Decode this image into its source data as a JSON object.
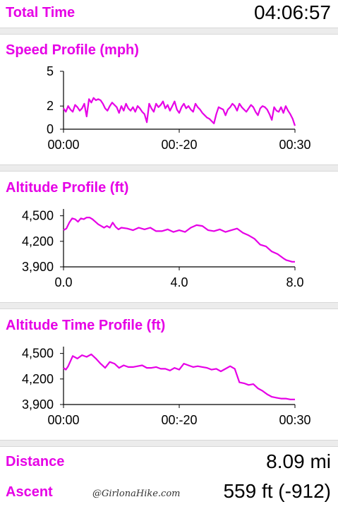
{
  "header": {
    "label": "Total Time",
    "value": "04:06:57"
  },
  "footer": {
    "distance": {
      "label": "Distance",
      "value": "8.09 mi"
    },
    "ascent": {
      "label": "Ascent",
      "value": "559 ft (-912)"
    },
    "watermark": "@GirlonaHike.com"
  },
  "colors": {
    "accent": "#e600e6",
    "separator": "#ececec",
    "text": "#000000"
  },
  "chart_data": [
    {
      "type": "line",
      "title": "Speed Profile (mph)",
      "ylim": [
        0,
        5
      ],
      "yticks": [
        "0",
        "2",
        "5"
      ],
      "ytick_values": [
        0,
        2,
        5
      ],
      "xlim": [
        0,
        1
      ],
      "xticks": [
        "00:00",
        "00:-20",
        "00:30"
      ],
      "xtick_values": [
        0,
        0.5,
        1
      ],
      "series": [
        {
          "x": [
            0,
            0.01,
            0.02,
            0.03,
            0.04,
            0.05,
            0.06,
            0.07,
            0.08,
            0.09,
            0.1,
            0.11,
            0.12,
            0.13,
            0.14,
            0.15,
            0.16,
            0.17,
            0.18,
            0.19,
            0.2,
            0.21,
            0.22,
            0.23,
            0.24,
            0.25,
            0.26,
            0.27,
            0.28,
            0.29,
            0.3,
            0.31,
            0.32,
            0.33,
            0.34,
            0.35,
            0.36,
            0.37,
            0.38,
            0.39,
            0.4,
            0.41,
            0.42,
            0.43,
            0.44,
            0.45,
            0.46,
            0.47,
            0.48,
            0.49,
            0.5,
            0.51,
            0.52,
            0.53,
            0.54,
            0.55,
            0.56,
            0.57,
            0.58,
            0.59,
            0.6,
            0.61,
            0.62,
            0.63,
            0.64,
            0.65,
            0.66,
            0.67,
            0.68,
            0.69,
            0.7,
            0.71,
            0.72,
            0.73,
            0.74,
            0.75,
            0.76,
            0.77,
            0.78,
            0.79,
            0.8,
            0.81,
            0.82,
            0.83,
            0.84,
            0.85,
            0.86,
            0.87,
            0.88,
            0.89,
            0.9,
            0.91,
            0.92,
            0.93,
            0.94,
            0.95,
            0.96,
            0.97,
            0.98,
            0.99,
            1
          ],
          "y": [
            1.8,
            1.5,
            2.0,
            1.7,
            1.5,
            2.1,
            1.9,
            1.6,
            1.8,
            2.2,
            1.1,
            2.6,
            2.3,
            2.7,
            2.5,
            2.6,
            2.5,
            2.2,
            1.8,
            1.6,
            2.0,
            2.3,
            2.1,
            1.9,
            1.4,
            2.0,
            1.6,
            2.2,
            1.8,
            1.6,
            1.9,
            1.5,
            2.0,
            1.8,
            1.5,
            1.3,
            0.6,
            2.2,
            1.8,
            1.5,
            2.2,
            1.9,
            2.1,
            2.4,
            1.8,
            2.1,
            1.6,
            2.0,
            2.4,
            1.7,
            1.4,
            1.9,
            2.2,
            1.8,
            2.0,
            1.7,
            1.5,
            2.2,
            1.9,
            1.7,
            1.4,
            1.2,
            1.0,
            0.9,
            0.7,
            0.5,
            1.3,
            1.9,
            1.8,
            1.7,
            1.2,
            1.7,
            1.9,
            2.2,
            2.0,
            1.6,
            2.2,
            1.9,
            1.7,
            1.5,
            1.8,
            2.1,
            1.9,
            1.5,
            1.2,
            1.8,
            2.0,
            1.9,
            1.7,
            1.3,
            0.8,
            1.9,
            1.6,
            1.5,
            1.9,
            1.4,
            2.0,
            1.6,
            1.3,
            0.9,
            0.3
          ]
        }
      ]
    },
    {
      "type": "line",
      "title": "Altitude Profile (ft)",
      "ylim": [
        3900,
        4580
      ],
      "yticks": [
        "3,900",
        "4,200",
        "4,500"
      ],
      "ytick_values": [
        3900,
        4200,
        4500
      ],
      "xlim": [
        0,
        8
      ],
      "xticks": [
        "0.0",
        "4.0",
        "8.0"
      ],
      "xtick_values": [
        0,
        4,
        8
      ],
      "series": [
        {
          "x": [
            0,
            0.1,
            0.2,
            0.3,
            0.4,
            0.5,
            0.6,
            0.7,
            0.8,
            0.9,
            1.0,
            1.1,
            1.2,
            1.3,
            1.4,
            1.5,
            1.6,
            1.7,
            1.8,
            1.9,
            2.0,
            2.2,
            2.4,
            2.6,
            2.8,
            3.0,
            3.2,
            3.4,
            3.6,
            3.8,
            4.0,
            4.2,
            4.4,
            4.6,
            4.8,
            5.0,
            5.2,
            5.4,
            5.6,
            5.8,
            6.0,
            6.2,
            6.4,
            6.6,
            6.8,
            7.0,
            7.2,
            7.4,
            7.6,
            7.7,
            7.8,
            7.9,
            8.0
          ],
          "y": [
            4330,
            4350,
            4420,
            4470,
            4460,
            4430,
            4470,
            4460,
            4480,
            4480,
            4460,
            4430,
            4400,
            4380,
            4360,
            4380,
            4360,
            4420,
            4370,
            4340,
            4360,
            4350,
            4330,
            4360,
            4340,
            4360,
            4320,
            4320,
            4340,
            4310,
            4330,
            4310,
            4360,
            4390,
            4380,
            4330,
            4320,
            4340,
            4310,
            4330,
            4350,
            4300,
            4270,
            4230,
            4160,
            4140,
            4080,
            4050,
            4000,
            3980,
            3970,
            3960,
            3960
          ]
        }
      ]
    },
    {
      "type": "line",
      "title": "Altitude Time Profile (ft)",
      "ylim": [
        3900,
        4580
      ],
      "yticks": [
        "3,900",
        "4,200",
        "4,500"
      ],
      "ytick_values": [
        3900,
        4200,
        4500
      ],
      "xlim": [
        0,
        1
      ],
      "xticks": [
        "00:00",
        "00:-20",
        "00:30"
      ],
      "xtick_values": [
        0,
        0.5,
        1
      ],
      "series": [
        {
          "x": [
            0,
            0.01,
            0.02,
            0.04,
            0.06,
            0.08,
            0.1,
            0.12,
            0.14,
            0.16,
            0.18,
            0.2,
            0.22,
            0.24,
            0.26,
            0.28,
            0.3,
            0.32,
            0.34,
            0.36,
            0.38,
            0.4,
            0.42,
            0.44,
            0.46,
            0.48,
            0.5,
            0.52,
            0.54,
            0.56,
            0.58,
            0.6,
            0.62,
            0.64,
            0.66,
            0.68,
            0.7,
            0.72,
            0.74,
            0.76,
            0.78,
            0.8,
            0.82,
            0.84,
            0.86,
            0.88,
            0.9,
            0.92,
            0.94,
            0.96,
            0.98,
            1.0
          ],
          "y": [
            4330,
            4310,
            4350,
            4470,
            4440,
            4480,
            4460,
            4490,
            4440,
            4380,
            4330,
            4400,
            4380,
            4330,
            4360,
            4340,
            4340,
            4350,
            4360,
            4330,
            4330,
            4340,
            4320,
            4320,
            4300,
            4330,
            4310,
            4380,
            4360,
            4340,
            4350,
            4340,
            4330,
            4310,
            4320,
            4290,
            4320,
            4350,
            4320,
            4160,
            4150,
            4130,
            4140,
            4090,
            4060,
            4020,
            3990,
            3980,
            3970,
            3970,
            3960,
            3960
          ]
        }
      ]
    }
  ]
}
